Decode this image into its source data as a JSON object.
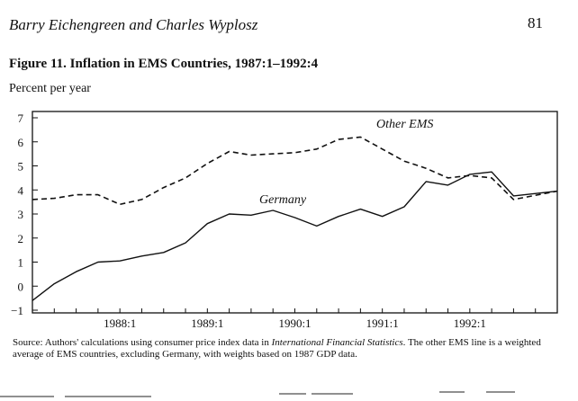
{
  "header": {
    "running_head": "Barry Eichengreen and Charles Wyplosz",
    "page_number": "81"
  },
  "figure": {
    "title": "Figure 11.  Inflation in EMS Countries, 1987:1–1992:4",
    "y_unit": "Percent per year",
    "source_lead": "Source: Authors' calculations using consumer price index data in ",
    "source_italic": "International Financial Statistics",
    "source_tail": ". The other EMS line is a weighted average of EMS countries, excluding Germany, with weights based on 1987 GDP data."
  },
  "chart_data": {
    "type": "line",
    "x": [
      "1987:1",
      "1987:2",
      "1987:3",
      "1987:4",
      "1988:1",
      "1988:2",
      "1988:3",
      "1988:4",
      "1989:1",
      "1989:2",
      "1989:3",
      "1989:4",
      "1990:1",
      "1990:2",
      "1990:3",
      "1990:4",
      "1991:1",
      "1991:2",
      "1991:3",
      "1991:4",
      "1992:1",
      "1992:2",
      "1992:3",
      "1992:4"
    ],
    "series": [
      {
        "name": "Other EMS",
        "line_style": "dashed",
        "values": [
          3.6,
          3.65,
          3.8,
          3.8,
          3.4,
          3.6,
          4.1,
          4.5,
          5.1,
          5.6,
          5.45,
          5.5,
          5.55,
          5.7,
          6.1,
          6.2,
          5.7,
          5.2,
          4.9,
          4.5,
          4.6,
          4.5,
          3.6,
          3.95
        ]
      },
      {
        "name": "Germany",
        "line_style": "solid",
        "values": [
          -0.6,
          0.1,
          0.6,
          1.0,
          1.05,
          1.25,
          1.4,
          1.8,
          2.6,
          3.0,
          2.95,
          3.15,
          2.85,
          2.5,
          2.9,
          3.2,
          2.9,
          3.3,
          4.35,
          4.2,
          4.65,
          4.75,
          3.75,
          3.95
        ]
      }
    ],
    "y_ticks": [
      "7",
      "6",
      "5",
      "4",
      "3",
      "2",
      "1",
      "0",
      "-1"
    ],
    "x_tick_labels": [
      {
        "label": "1988:1",
        "quarter_index": 4
      },
      {
        "label": "1989:1",
        "quarter_index": 8
      },
      {
        "label": "1990:1",
        "quarter_index": 12
      },
      {
        "label": "1991:1",
        "quarter_index": 16
      },
      {
        "label": "1992:1",
        "quarter_index": 20
      }
    ],
    "ylim": [
      -1,
      7
    ],
    "grid": false,
    "xlabel": "",
    "ylabel": "Percent per year"
  }
}
